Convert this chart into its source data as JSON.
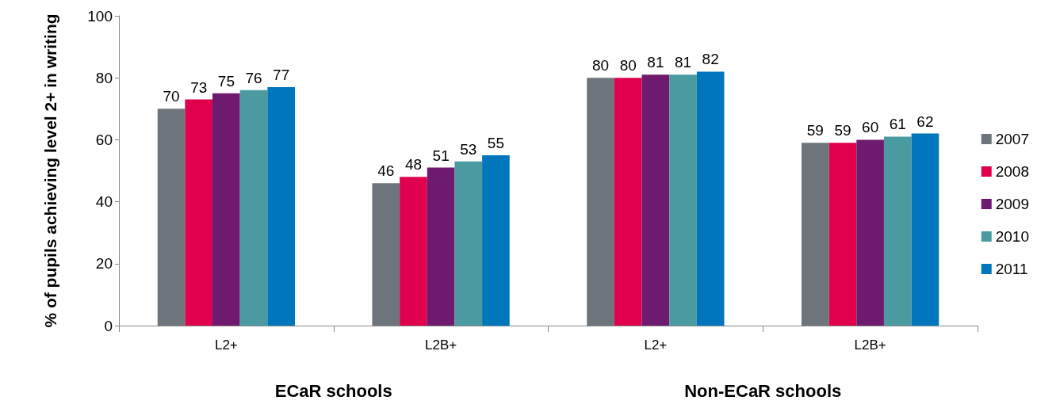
{
  "chart_data": {
    "type": "bar",
    "ylabel": "% of pupils achieving level 2+ in writing",
    "categories": [
      "L2+",
      "L2B+",
      "L2+",
      "L2B+"
    ],
    "series": [
      {
        "name": "2007",
        "color": "#6d747b",
        "values": [
          70,
          46,
          80,
          59
        ]
      },
      {
        "name": "2008",
        "color": "#e0004d",
        "values": [
          73,
          48,
          80,
          59
        ]
      },
      {
        "name": "2009",
        "color": "#6e1a6e",
        "values": [
          75,
          51,
          81,
          60
        ]
      },
      {
        "name": "2010",
        "color": "#4a9aa0",
        "values": [
          76,
          53,
          81,
          61
        ]
      },
      {
        "name": "2011",
        "color": "#0076bd",
        "values": [
          77,
          55,
          82,
          62
        ]
      }
    ],
    "annotations": [
      "ECaR schools",
      "Non-ECaR schools"
    ],
    "ylim": [
      0,
      100
    ],
    "yticks": [
      0,
      20,
      40,
      60,
      80,
      100
    ],
    "data_labels": true,
    "legend": "right",
    "grid": false
  }
}
